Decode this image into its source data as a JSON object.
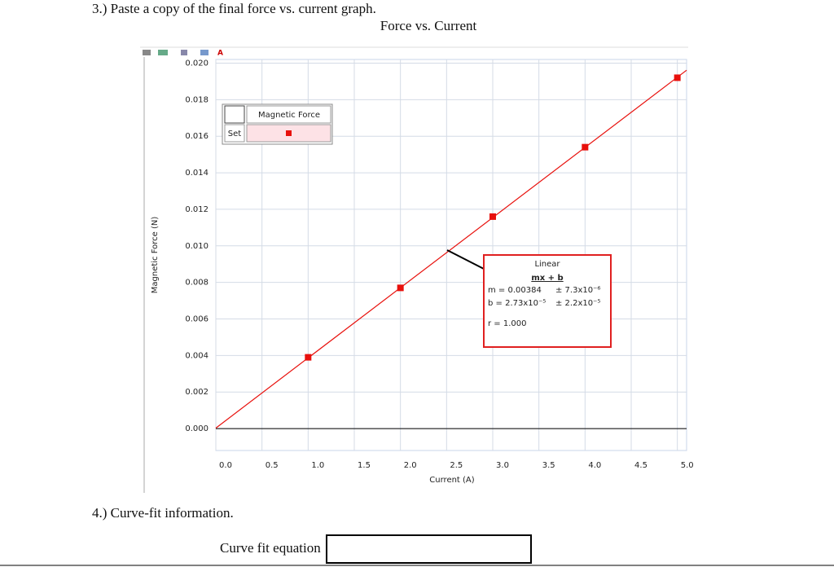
{
  "document": {
    "question3": "3.) Paste a copy of the final force vs. current graph.",
    "question4": "4.) Curve-fit information.",
    "curve_fit_label": "Curve fit equation"
  },
  "chart_data": {
    "type": "scatter",
    "title": "Force vs. Current",
    "x_label": "Current (A)",
    "y_label": "Magnetic Force (N)",
    "x": [
      1,
      2,
      3,
      4,
      5
    ],
    "series": [
      {
        "name": "Magnetic Force",
        "color": "#e8100c",
        "values": [
          0.0039,
          0.0077,
          0.0116,
          0.0154,
          0.0192
        ]
      }
    ],
    "legend_row_label": "Set",
    "xlim": [
      0,
      5.1
    ],
    "ylim": [
      -0.0012,
      0.0202
    ],
    "xticks": [
      {
        "value": 0,
        "label": "0.0"
      },
      0.5,
      {
        "value": 1,
        "label": "1.0"
      },
      1.5,
      {
        "value": 2,
        "label": "2.0"
      },
      2.5,
      {
        "value": 3,
        "label": "3.0"
      },
      3.5,
      {
        "value": 4,
        "label": "4.0"
      },
      4.5,
      {
        "value": 5,
        "label": "5.0"
      }
    ],
    "yticks": [
      {
        "value": 0,
        "label": "0.000"
      },
      {
        "value": 0.002,
        "label": "0.002"
      },
      {
        "value": 0.004,
        "label": "0.004"
      },
      {
        "value": 0.006,
        "label": "0.006"
      },
      {
        "value": 0.008,
        "label": "0.008"
      },
      {
        "value": 0.01,
        "label": "0.010"
      },
      {
        "value": 0.012,
        "label": "0.012"
      },
      {
        "value": 0.014,
        "label": "0.014"
      },
      {
        "value": 0.016,
        "label": "0.016"
      },
      {
        "value": 0.018,
        "label": "0.018"
      },
      {
        "value": 0.02,
        "label": "0.020"
      }
    ],
    "grid": true,
    "fit": {
      "title": "Linear",
      "equation": "mx + b",
      "m": 0.00384,
      "m_label": "m = 0.00384",
      "m_error_label": "± 7.3x10⁻⁶",
      "b": 2.73e-05,
      "b_label": "b = 2.73x10⁻⁵",
      "b_error_label": "± 2.2x10⁻⁵",
      "r_label": "r = 1.000",
      "color": "#e8100c"
    }
  }
}
